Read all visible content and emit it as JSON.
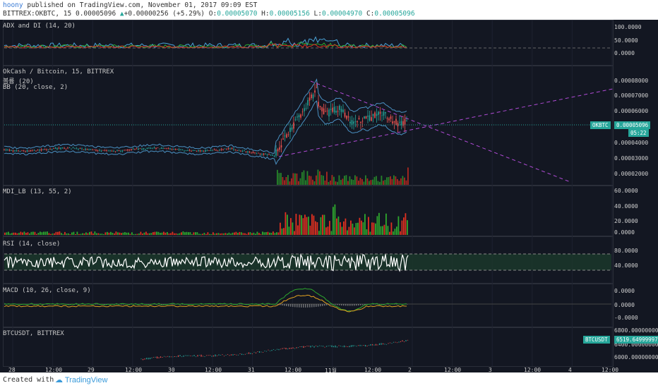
{
  "header": {
    "author": "hoony",
    "published": "published on TradingView.com, November 01, 2017 09:09 EST",
    "symbol": "BITTREX:OKBTC, 15",
    "last": "0.00005096",
    "change": "+0.00000256 (+5.29%)",
    "o_label": "O:",
    "o": "0.00005070",
    "h_label": "H:",
    "h": "0.00005156",
    "l_label": "L:",
    "l": "0.00004970",
    "c_label": "C:",
    "c": "0.00005096"
  },
  "panels": {
    "adx": {
      "label": "ADX and DI (14, 20)",
      "ticks": [
        "100.0000",
        "50.0000",
        "0.0000"
      ]
    },
    "price": {
      "label1": "OkCash / Bitcoin, 15, BITTREX",
      "label2": "볼륨 (20)",
      "label3": "BB (20, close, 2)",
      "ticks": [
        "0.00008000",
        "0.00007000",
        "0.00006000",
        "0.00004000",
        "0.00003000",
        "0.00002000"
      ],
      "price_tag": "OKBTC",
      "price_value": "0.00005096",
      "countdown": "05:22"
    },
    "mdi": {
      "label": "MDI_LB (13, 55, 2)",
      "ticks": [
        "60.0000",
        "40.0000",
        "20.0000",
        "0.0000"
      ]
    },
    "rsi": {
      "label": "RSI (14, close)",
      "ticks": [
        "80.0000",
        "40.0000"
      ]
    },
    "macd": {
      "label": "MACD (10, 26, close, 9)",
      "ticks": [
        "0.0000",
        "0.0000",
        "-0.0000"
      ]
    },
    "btc": {
      "label": "BTCUSDT, BITTREX",
      "ticks": [
        "6800.00000000",
        "6400.00000000",
        "6000.00000000"
      ],
      "tag": "BTCUSDT",
      "value": "6519.64999997"
    }
  },
  "x_axis": [
    "28",
    "12:00",
    "29",
    "12:00",
    "30",
    "12:00",
    "31",
    "12:00",
    "11월",
    "12:00",
    "2",
    "12:00",
    "3",
    "12:00",
    "4",
    "12:00"
  ],
  "footer": {
    "created": "Created with",
    "brand": "TradingView"
  },
  "colors": {
    "up": "#26a69a",
    "down": "#ef5350",
    "trend": "#b04bd6",
    "bb": "#4a90c2",
    "vol_up": "#2ea82e",
    "vol_down": "#e03020",
    "bg": "#131722"
  }
}
